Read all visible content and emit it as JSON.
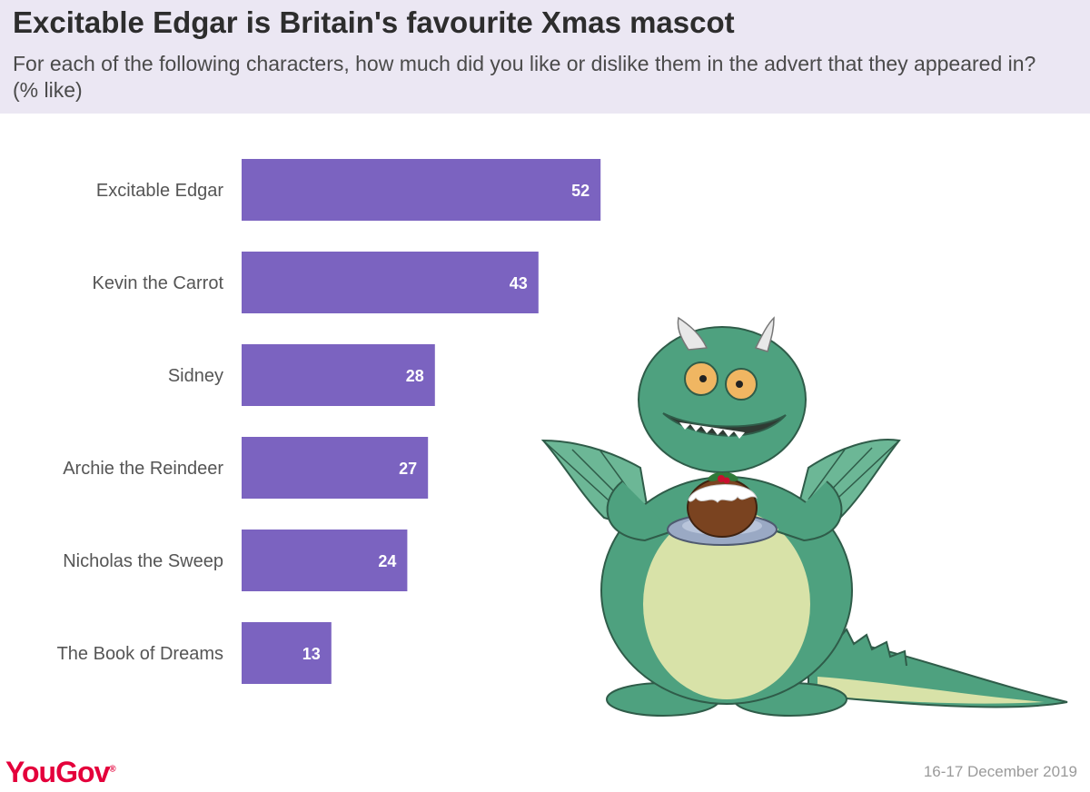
{
  "header": {
    "title": "Excitable Edgar is Britain's favourite Xmas mascot",
    "subtitle": "For each of the following characters, how much did you like or dislike them in the advert that they appeared in? (% like)"
  },
  "chart_data": {
    "type": "bar",
    "orientation": "horizontal",
    "categories": [
      "Excitable Edgar",
      "Kevin the Carrot",
      "Sidney",
      "Archie the Reindeer",
      "Nicholas the Sweep",
      "The Book of Dreams"
    ],
    "values": [
      52,
      43,
      28,
      27,
      24,
      13
    ],
    "title": "",
    "xlabel": "",
    "ylabel": "",
    "xlim": [
      0,
      100
    ],
    "grid": false,
    "legend": "none",
    "bar_color": "#7b63c0"
  },
  "illustration": {
    "icon": "green-dragon-mascot-icon",
    "colors": {
      "body": "#4ea17f",
      "belly": "#d8e2a8",
      "outline": "#2f5c49"
    }
  },
  "footer": {
    "brand": "YouGov",
    "brand_mark": "®",
    "date": "16-17 December 2019",
    "brand_color": "#e4003b"
  }
}
